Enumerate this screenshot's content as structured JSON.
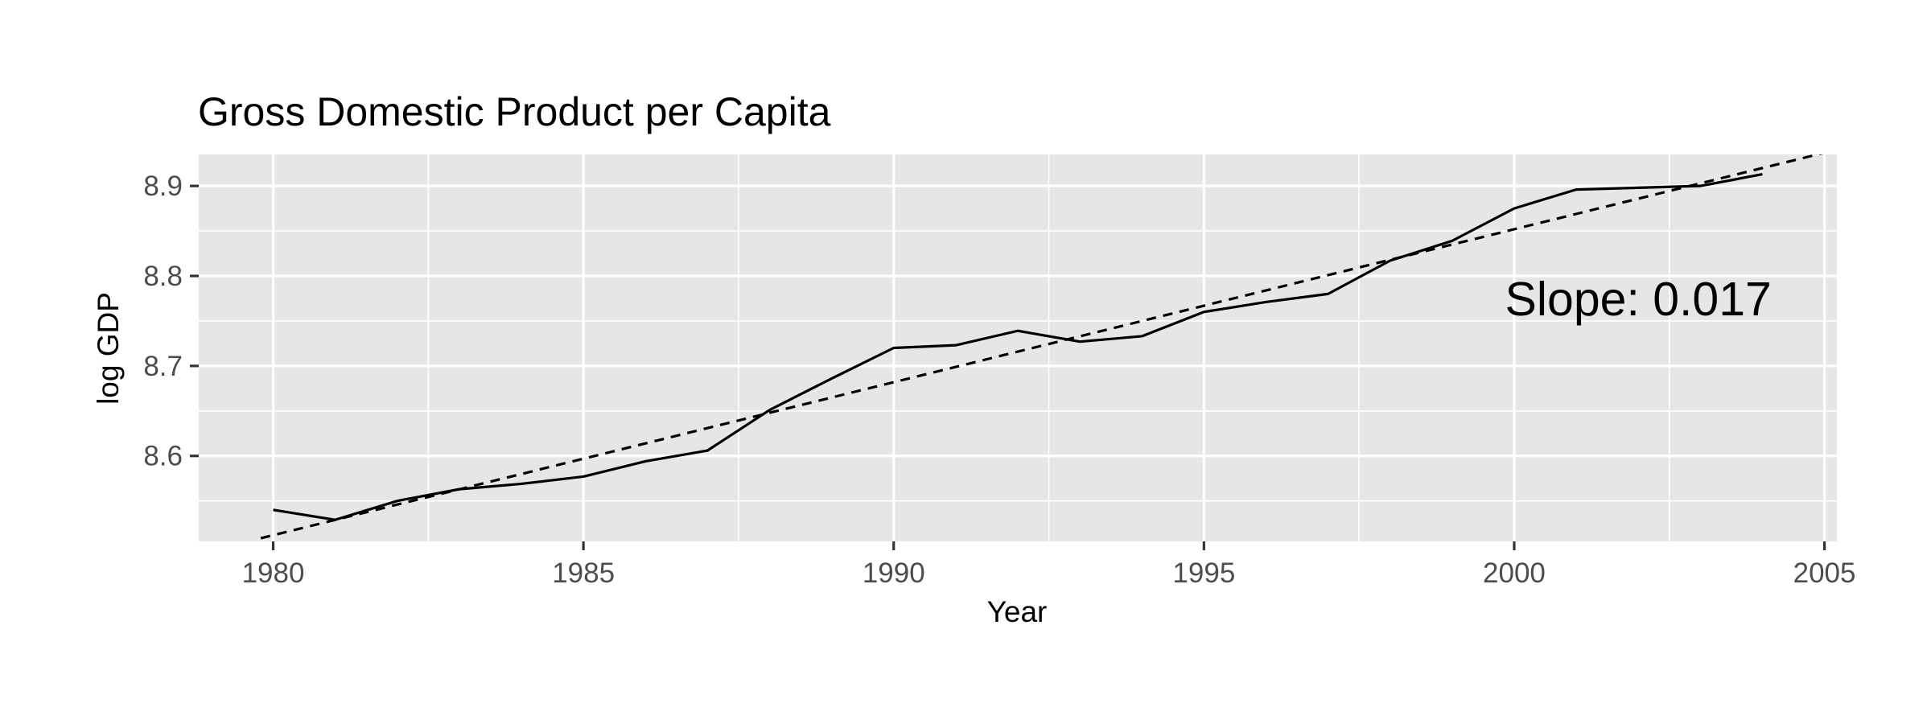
{
  "chart_data": {
    "type": "line",
    "title": "Gross Domestic Product per Capita",
    "xlabel": "Year",
    "ylabel": "log GDP",
    "xlim": [
      1978.8,
      2005.2
    ],
    "ylim": [
      8.505,
      8.935
    ],
    "x_ticks": [
      1980,
      1985,
      1990,
      1995,
      2000,
      2005
    ],
    "x_tick_labels": [
      "1980",
      "1985",
      "1990",
      "1995",
      "2000",
      "2005"
    ],
    "x_minor_ticks": [
      1982.5,
      1987.5,
      1992.5,
      1997.5,
      2002.5
    ],
    "y_ticks": [
      8.6,
      8.7,
      8.8,
      8.9
    ],
    "y_tick_labels": [
      "8.6",
      "8.7",
      "8.8",
      "8.9"
    ],
    "y_minor_ticks": [
      8.55,
      8.65,
      8.75,
      8.85
    ],
    "grid": true,
    "panel_background": "#e6e6e6",
    "series": [
      {
        "style": "solid",
        "color": "#000000",
        "x": [
          1980,
          1981,
          1982,
          1983,
          1984,
          1985,
          1986,
          1987,
          1988,
          1989,
          1990,
          1991,
          1992,
          1993,
          1994,
          1995,
          1996,
          1997,
          1998,
          1999,
          2000,
          2001,
          2002,
          2003,
          2004
        ],
        "y": [
          8.54,
          8.529,
          8.55,
          8.563,
          8.569,
          8.577,
          8.594,
          8.606,
          8.651,
          8.686,
          8.72,
          8.723,
          8.739,
          8.727,
          8.733,
          8.76,
          8.771,
          8.78,
          8.817,
          8.839,
          8.875,
          8.896,
          8.898,
          8.9,
          8.913
        ]
      },
      {
        "style": "dashed",
        "color": "#000000",
        "x": [
          1979.8,
          2005.2
        ],
        "y": [
          8.5085,
          8.9403
        ]
      }
    ],
    "annotations": [
      {
        "text": "Slope: 0.017",
        "x": 2002.0,
        "y": 8.77
      }
    ]
  }
}
